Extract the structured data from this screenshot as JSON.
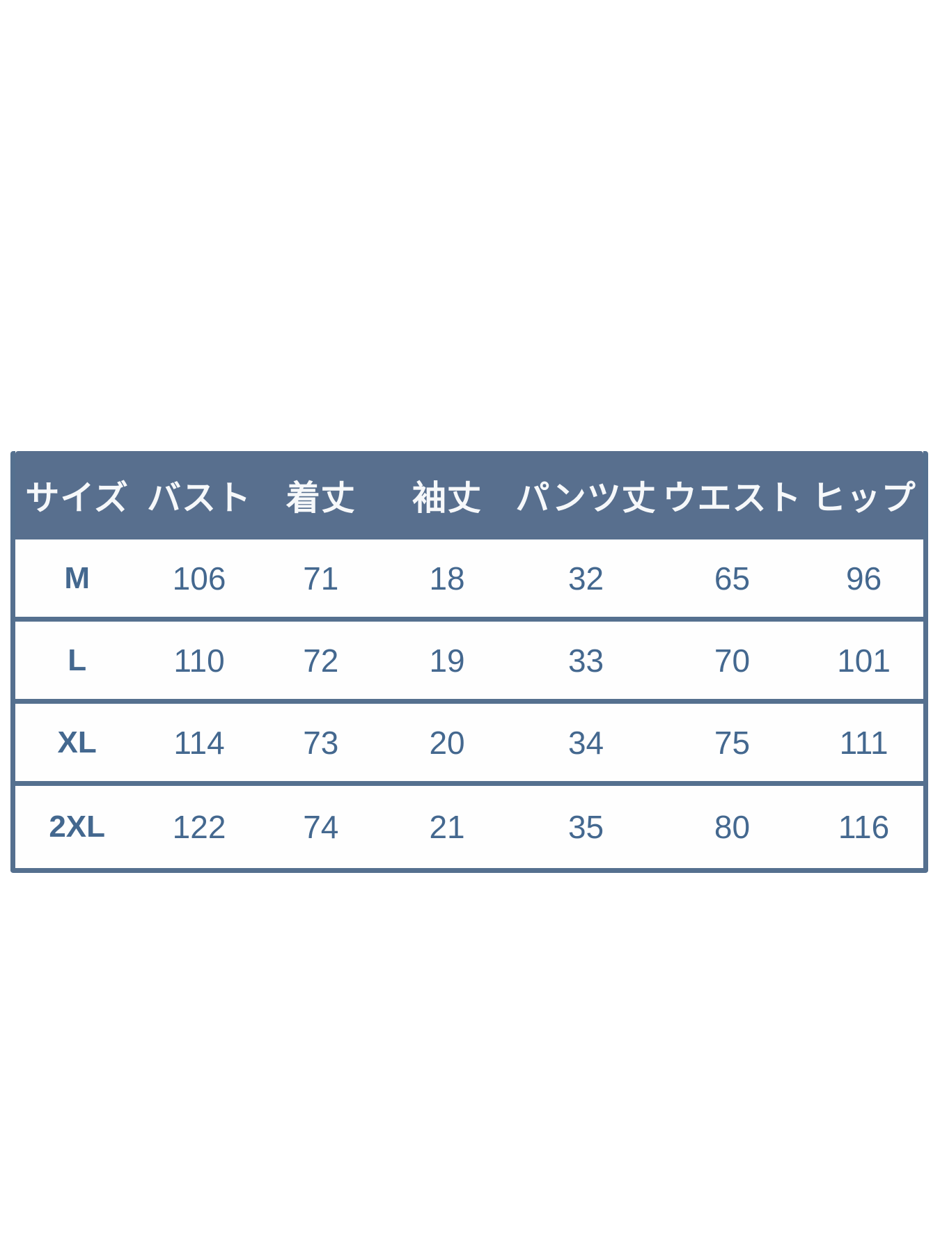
{
  "colors": {
    "header_bg": "#586f8e",
    "header_text": "#f6f8fa",
    "data_text": "#44688f",
    "border_color": "#55708f",
    "page_bg": "#ffffff"
  },
  "chart_data": {
    "type": "table",
    "columns": [
      "サイズ",
      "バスト",
      "着丈",
      "袖丈",
      "パンツ丈",
      "ウエスト",
      "ヒップ"
    ],
    "rows": [
      [
        "M",
        "106",
        "71",
        "18",
        "32",
        "65",
        "96"
      ],
      [
        "L",
        "110",
        "72",
        "19",
        "33",
        "70",
        "101"
      ],
      [
        "XL",
        "114",
        "73",
        "20",
        "34",
        "75",
        "111"
      ],
      [
        "2XL",
        "122",
        "74",
        "21",
        "35",
        "80",
        "116"
      ]
    ]
  }
}
